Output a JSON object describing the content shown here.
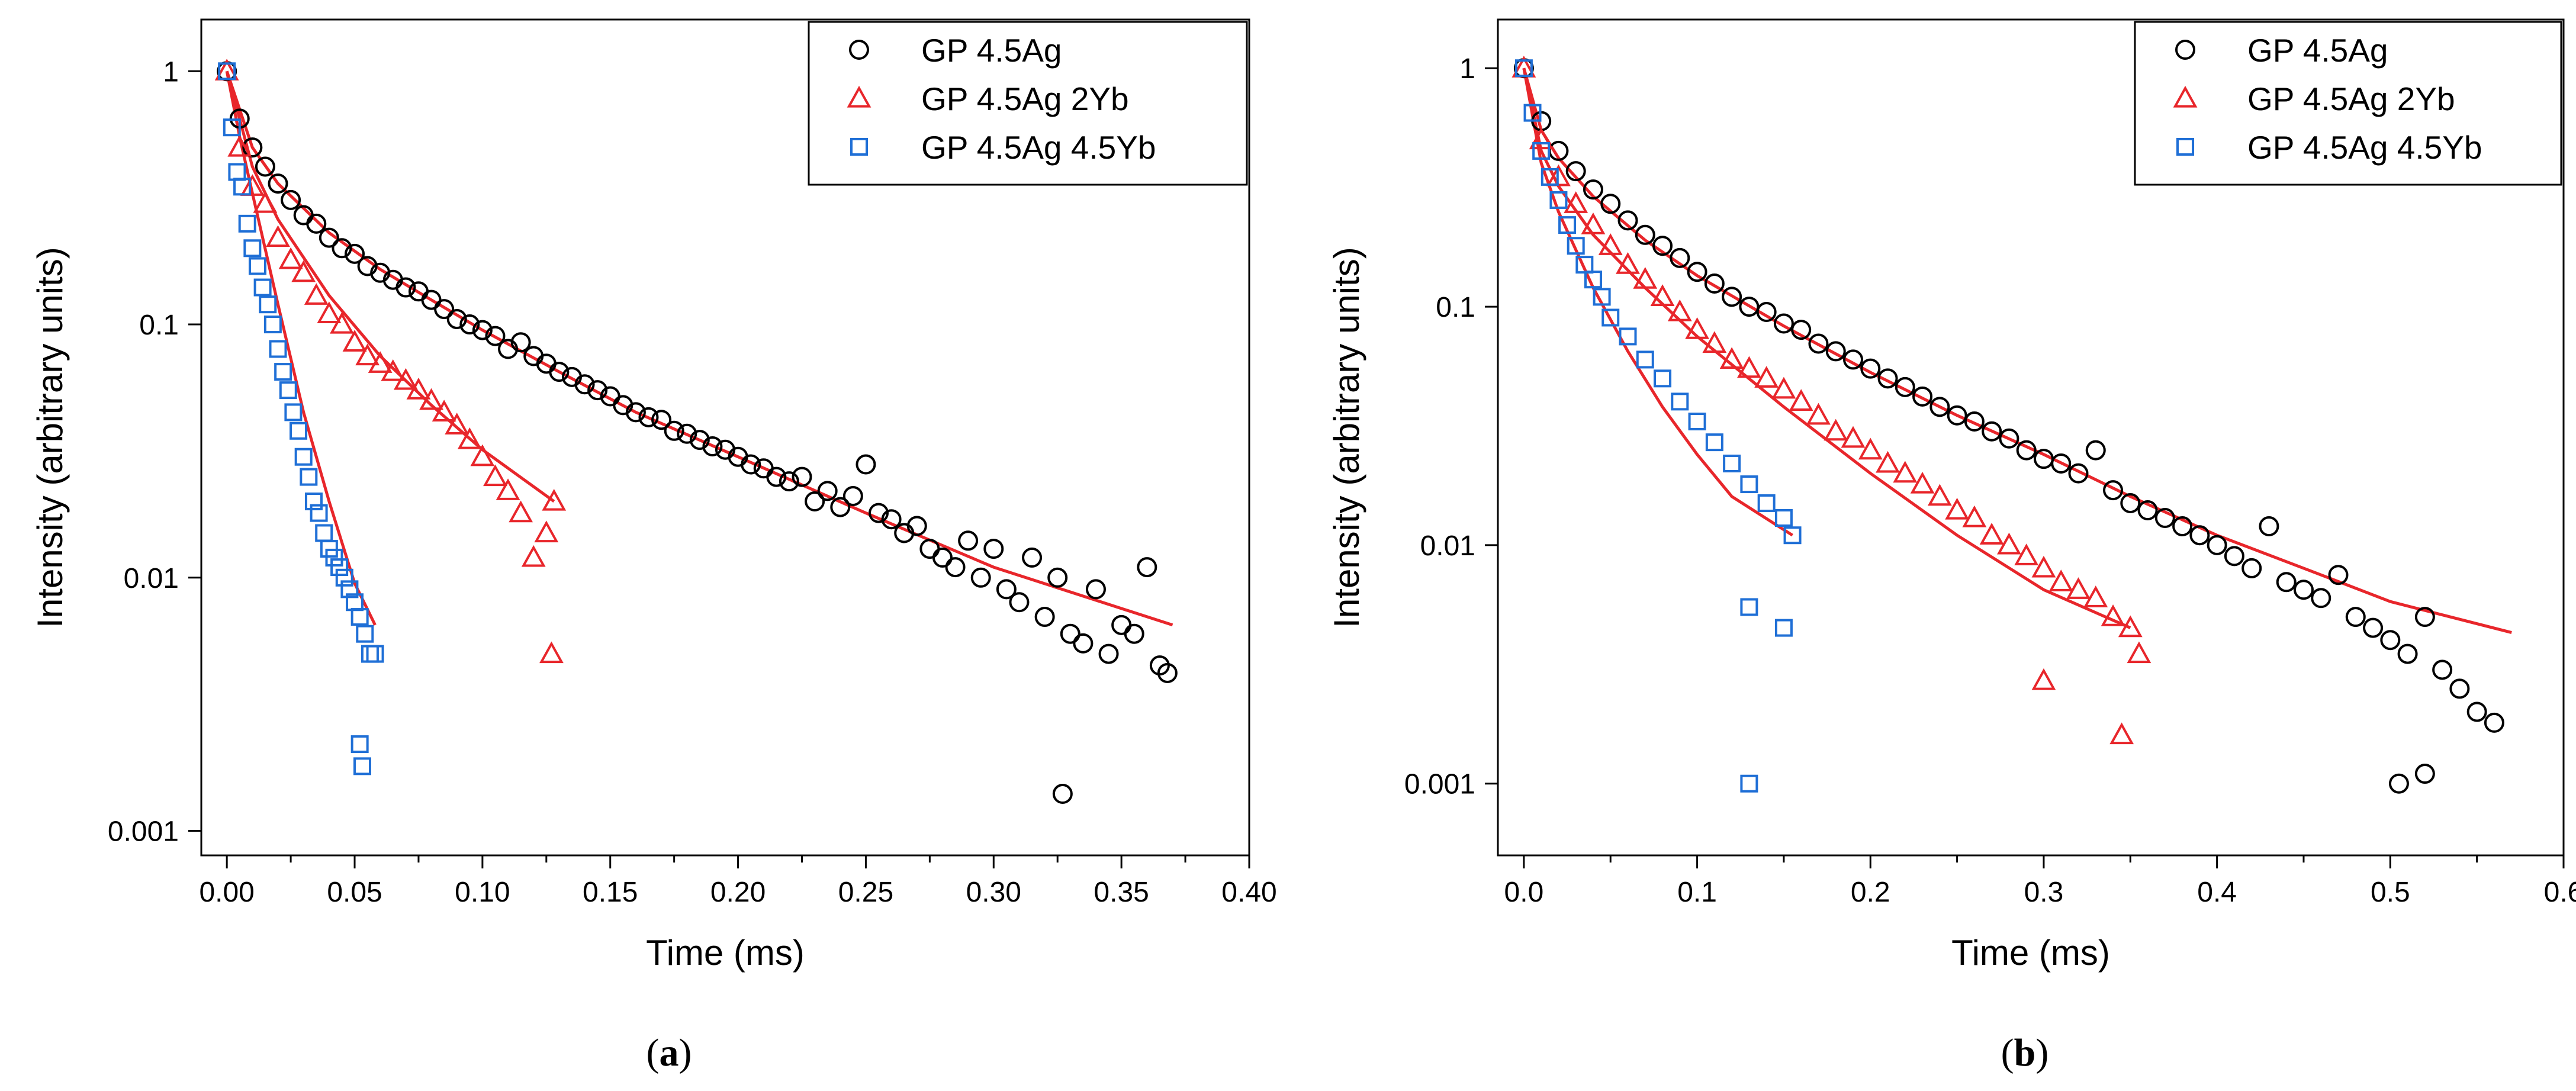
{
  "colors": {
    "black_series": "#000000",
    "red_series": "#e8262b",
    "blue_series": "#1f6fd6",
    "fit_line": "#e8262b",
    "axes": "#000000"
  },
  "chart_data": [
    {
      "type": "scatter",
      "caption_prefix": "(",
      "caption_letter": "a",
      "caption_suffix": ")",
      "xlabel": "Time (ms)",
      "ylabel": "Intensity (arbitrary units)",
      "xscale": "linear",
      "yscale": "log",
      "xlim": [
        -0.01,
        0.4
      ],
      "ylim": [
        0.0008,
        1.6
      ],
      "xticks": [
        0.0,
        0.05,
        0.1,
        0.15,
        0.2,
        0.25,
        0.3,
        0.35,
        0.4
      ],
      "xtick_labels": [
        "0.00",
        "0.05",
        "0.10",
        "0.15",
        "0.20",
        "0.25",
        "0.30",
        "0.35",
        "0.40"
      ],
      "yticks": [
        1,
        0.1,
        0.01,
        0.001
      ],
      "ytick_labels": [
        "1",
        "0.1",
        "0.01",
        "0.001"
      ],
      "legend_position": "top-right",
      "series": [
        {
          "name": "GP 4.5Ag",
          "marker": "circle",
          "color": "#000000",
          "x": [
            0.0,
            0.005,
            0.01,
            0.015,
            0.02,
            0.025,
            0.03,
            0.035,
            0.04,
            0.045,
            0.05,
            0.055,
            0.06,
            0.065,
            0.07,
            0.075,
            0.08,
            0.085,
            0.09,
            0.095,
            0.1,
            0.105,
            0.11,
            0.115,
            0.12,
            0.125,
            0.13,
            0.135,
            0.14,
            0.145,
            0.15,
            0.155,
            0.16,
            0.165,
            0.17,
            0.175,
            0.18,
            0.185,
            0.19,
            0.195,
            0.2,
            0.205,
            0.21,
            0.215,
            0.22,
            0.225,
            0.23,
            0.235,
            0.24,
            0.245,
            0.25,
            0.255,
            0.26,
            0.265,
            0.27,
            0.275,
            0.28,
            0.285,
            0.29,
            0.295,
            0.3,
            0.305,
            0.31,
            0.315,
            0.32,
            0.325,
            0.33,
            0.335,
            0.34,
            0.345,
            0.35,
            0.355,
            0.36,
            0.365,
            0.368,
            0.327
          ],
          "y": [
            1.0,
            0.65,
            0.5,
            0.42,
            0.36,
            0.31,
            0.27,
            0.25,
            0.22,
            0.2,
            0.19,
            0.17,
            0.16,
            0.15,
            0.14,
            0.135,
            0.125,
            0.115,
            0.105,
            0.1,
            0.095,
            0.09,
            0.08,
            0.085,
            0.075,
            0.07,
            0.065,
            0.062,
            0.058,
            0.055,
            0.052,
            0.048,
            0.045,
            0.043,
            0.042,
            0.038,
            0.037,
            0.035,
            0.033,
            0.032,
            0.03,
            0.028,
            0.027,
            0.025,
            0.024,
            0.025,
            0.02,
            0.022,
            0.019,
            0.021,
            0.028,
            0.018,
            0.017,
            0.015,
            0.016,
            0.013,
            0.012,
            0.011,
            0.014,
            0.01,
            0.013,
            0.009,
            0.008,
            0.012,
            0.007,
            0.01,
            0.006,
            0.0055,
            0.009,
            0.005,
            0.0065,
            0.006,
            0.011,
            0.0045,
            0.0042,
            0.0014
          ]
        },
        {
          "name": "GP 4.5Ag 2Yb",
          "marker": "triangle",
          "color": "#e8262b",
          "x": [
            0.0,
            0.005,
            0.01,
            0.015,
            0.02,
            0.025,
            0.03,
            0.035,
            0.04,
            0.045,
            0.05,
            0.055,
            0.06,
            0.065,
            0.07,
            0.075,
            0.08,
            0.085,
            0.09,
            0.095,
            0.1,
            0.105,
            0.11,
            0.115,
            0.12,
            0.125,
            0.128,
            0.127
          ],
          "y": [
            1.0,
            0.5,
            0.35,
            0.3,
            0.22,
            0.18,
            0.16,
            0.13,
            0.11,
            0.1,
            0.085,
            0.075,
            0.07,
            0.065,
            0.06,
            0.055,
            0.05,
            0.045,
            0.04,
            0.035,
            0.03,
            0.025,
            0.022,
            0.018,
            0.012,
            0.015,
            0.02,
            0.005
          ]
        },
        {
          "name": "GP 4.5Ag 4.5Yb",
          "marker": "square",
          "color": "#1f6fd6",
          "x": [
            0.0,
            0.002,
            0.004,
            0.006,
            0.008,
            0.01,
            0.012,
            0.014,
            0.016,
            0.018,
            0.02,
            0.022,
            0.024,
            0.026,
            0.028,
            0.03,
            0.032,
            0.034,
            0.036,
            0.038,
            0.04,
            0.042,
            0.044,
            0.046,
            0.048,
            0.05,
            0.052,
            0.054,
            0.056,
            0.058,
            0.052,
            0.053
          ],
          "y": [
            1.0,
            0.6,
            0.4,
            0.35,
            0.25,
            0.2,
            0.17,
            0.14,
            0.12,
            0.1,
            0.08,
            0.065,
            0.055,
            0.045,
            0.038,
            0.03,
            0.025,
            0.02,
            0.018,
            0.015,
            0.013,
            0.012,
            0.011,
            0.01,
            0.009,
            0.008,
            0.007,
            0.006,
            0.005,
            0.005,
            0.0022,
            0.0018
          ]
        }
      ],
      "fits": [
        {
          "color": "#e8262b",
          "x": [
            0.0,
            0.01,
            0.02,
            0.04,
            0.06,
            0.08,
            0.1,
            0.13,
            0.16,
            0.2,
            0.25,
            0.3,
            0.37
          ],
          "y": [
            1.0,
            0.5,
            0.36,
            0.23,
            0.165,
            0.125,
            0.095,
            0.065,
            0.045,
            0.03,
            0.018,
            0.011,
            0.0065
          ]
        },
        {
          "color": "#e8262b",
          "x": [
            0.0,
            0.01,
            0.02,
            0.04,
            0.06,
            0.08,
            0.1,
            0.128
          ],
          "y": [
            1.0,
            0.42,
            0.26,
            0.13,
            0.075,
            0.048,
            0.032,
            0.02
          ]
        },
        {
          "color": "#e8262b",
          "x": [
            0.0,
            0.005,
            0.01,
            0.02,
            0.03,
            0.04,
            0.05,
            0.058
          ],
          "y": [
            1.0,
            0.55,
            0.33,
            0.12,
            0.045,
            0.02,
            0.0095,
            0.0065
          ]
        }
      ]
    },
    {
      "type": "scatter",
      "caption_prefix": "(",
      "caption_letter": "b",
      "caption_suffix": ")",
      "xlabel": "Time (ms)",
      "ylabel": "Intensity (arbitrary units)",
      "xscale": "linear",
      "yscale": "log",
      "xlim": [
        -0.015,
        0.6
      ],
      "ylim": [
        0.0005,
        1.6
      ],
      "xticks": [
        0.0,
        0.1,
        0.2,
        0.3,
        0.4,
        0.5,
        0.6
      ],
      "xtick_labels": [
        "0.0",
        "0.1",
        "0.2",
        "0.3",
        "0.4",
        "0.5",
        "0.6"
      ],
      "yticks": [
        1,
        0.1,
        0.01,
        0.001
      ],
      "ytick_labels": [
        "1",
        "0.1",
        "0.01",
        "0.001"
      ],
      "legend_position": "top-right",
      "series": [
        {
          "name": "GP 4.5Ag",
          "marker": "circle",
          "color": "#000000",
          "x": [
            0.0,
            0.01,
            0.02,
            0.03,
            0.04,
            0.05,
            0.06,
            0.07,
            0.08,
            0.09,
            0.1,
            0.11,
            0.12,
            0.13,
            0.14,
            0.15,
            0.16,
            0.17,
            0.18,
            0.19,
            0.2,
            0.21,
            0.22,
            0.23,
            0.24,
            0.25,
            0.26,
            0.27,
            0.28,
            0.29,
            0.3,
            0.31,
            0.32,
            0.33,
            0.34,
            0.35,
            0.36,
            0.37,
            0.38,
            0.39,
            0.4,
            0.41,
            0.42,
            0.43,
            0.44,
            0.45,
            0.46,
            0.47,
            0.48,
            0.49,
            0.5,
            0.51,
            0.52,
            0.53,
            0.54,
            0.55,
            0.56,
            0.505,
            0.52
          ],
          "y": [
            1.0,
            0.6,
            0.45,
            0.37,
            0.31,
            0.27,
            0.23,
            0.2,
            0.18,
            0.16,
            0.14,
            0.125,
            0.11,
            0.1,
            0.095,
            0.085,
            0.08,
            0.07,
            0.065,
            0.06,
            0.055,
            0.05,
            0.046,
            0.042,
            0.038,
            0.035,
            0.033,
            0.03,
            0.028,
            0.025,
            0.023,
            0.022,
            0.02,
            0.025,
            0.017,
            0.015,
            0.014,
            0.013,
            0.012,
            0.011,
            0.01,
            0.009,
            0.008,
            0.012,
            0.007,
            0.0065,
            0.006,
            0.0075,
            0.005,
            0.0045,
            0.004,
            0.0035,
            0.005,
            0.003,
            0.0025,
            0.002,
            0.0018,
            0.001,
            0.0011
          ]
        },
        {
          "name": "GP 4.5Ag 2Yb",
          "marker": "triangle",
          "color": "#e8262b",
          "x": [
            0.0,
            0.01,
            0.02,
            0.03,
            0.04,
            0.05,
            0.06,
            0.07,
            0.08,
            0.09,
            0.1,
            0.11,
            0.12,
            0.13,
            0.14,
            0.15,
            0.16,
            0.17,
            0.18,
            0.19,
            0.2,
            0.21,
            0.22,
            0.23,
            0.24,
            0.25,
            0.26,
            0.27,
            0.28,
            0.29,
            0.3,
            0.31,
            0.32,
            0.33,
            0.34,
            0.35,
            0.355,
            0.345,
            0.3
          ],
          "y": [
            1.0,
            0.5,
            0.35,
            0.27,
            0.22,
            0.18,
            0.15,
            0.13,
            0.11,
            0.095,
            0.08,
            0.07,
            0.06,
            0.055,
            0.05,
            0.045,
            0.04,
            0.035,
            0.03,
            0.028,
            0.025,
            0.022,
            0.02,
            0.018,
            0.016,
            0.014,
            0.013,
            0.011,
            0.01,
            0.009,
            0.008,
            0.007,
            0.0065,
            0.006,
            0.005,
            0.0045,
            0.0035,
            0.0016,
            0.0027
          ]
        },
        {
          "name": "GP 4.5Ag 4.5Yb",
          "marker": "square",
          "color": "#1f6fd6",
          "x": [
            0.0,
            0.005,
            0.01,
            0.015,
            0.02,
            0.025,
            0.03,
            0.035,
            0.04,
            0.045,
            0.05,
            0.06,
            0.07,
            0.08,
            0.09,
            0.1,
            0.11,
            0.12,
            0.13,
            0.14,
            0.15,
            0.155,
            0.13,
            0.15,
            0.13
          ],
          "y": [
            1.0,
            0.65,
            0.45,
            0.35,
            0.28,
            0.22,
            0.18,
            0.15,
            0.13,
            0.11,
            0.09,
            0.075,
            0.06,
            0.05,
            0.04,
            0.033,
            0.027,
            0.022,
            0.018,
            0.015,
            0.013,
            0.011,
            0.0055,
            0.0045,
            0.001
          ]
        }
      ],
      "fits": [
        {
          "color": "#e8262b",
          "x": [
            0.0,
            0.01,
            0.02,
            0.04,
            0.07,
            0.1,
            0.15,
            0.2,
            0.25,
            0.3,
            0.35,
            0.4,
            0.45,
            0.5,
            0.57
          ],
          "y": [
            1.0,
            0.55,
            0.42,
            0.29,
            0.19,
            0.135,
            0.083,
            0.053,
            0.035,
            0.024,
            0.016,
            0.011,
            0.008,
            0.0058,
            0.0043
          ]
        },
        {
          "color": "#e8262b",
          "x": [
            0.0,
            0.01,
            0.02,
            0.04,
            0.07,
            0.1,
            0.15,
            0.2,
            0.25,
            0.3,
            0.35
          ],
          "y": [
            1.0,
            0.45,
            0.32,
            0.2,
            0.12,
            0.075,
            0.038,
            0.02,
            0.011,
            0.0065,
            0.0045
          ]
        },
        {
          "color": "#e8262b",
          "x": [
            0.0,
            0.01,
            0.02,
            0.04,
            0.06,
            0.08,
            0.1,
            0.12,
            0.155
          ],
          "y": [
            1.0,
            0.4,
            0.25,
            0.12,
            0.065,
            0.038,
            0.024,
            0.016,
            0.011
          ]
        }
      ]
    }
  ]
}
